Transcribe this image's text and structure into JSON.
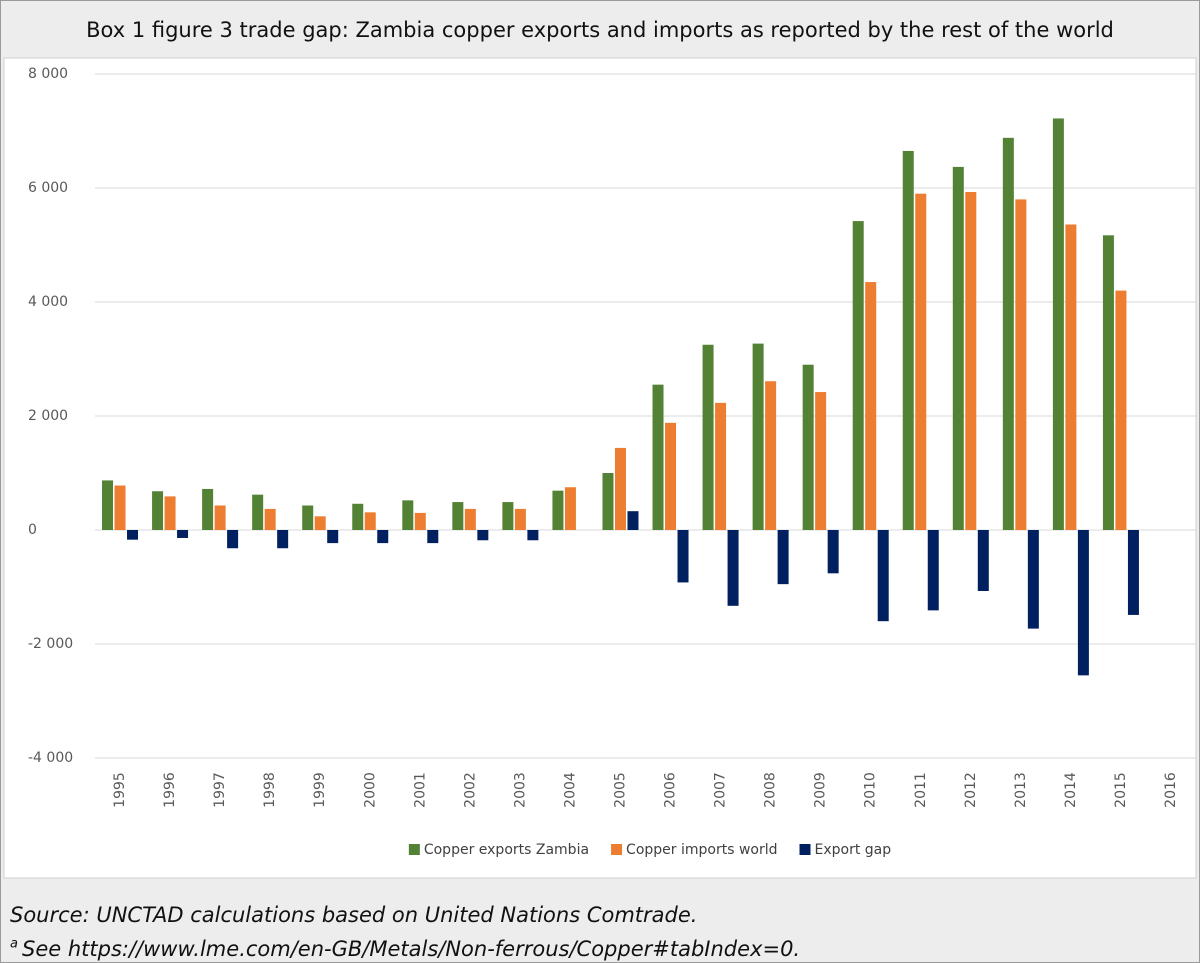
{
  "chart_data": {
    "type": "bar",
    "title": "Box 1 figure 3 trade gap: Zambia copper exports and imports as reported by the rest of the world",
    "categories": [
      "1995",
      "1996",
      "1997",
      "1998",
      "1999",
      "2000",
      "2001",
      "2002",
      "2003",
      "2004",
      "2005",
      "2006",
      "2007",
      "2008",
      "2009",
      "2010",
      "2011",
      "2012",
      "2013",
      "2014",
      "2015",
      "2016"
    ],
    "series": [
      {
        "name": "Copper exports Zambia",
        "color": "#548235",
        "values": [
          870,
          680,
          720,
          620,
          430,
          460,
          520,
          490,
          490,
          690,
          1000,
          2550,
          3250,
          3270,
          2900,
          5420,
          6650,
          6370,
          6880,
          7220,
          5170,
          null
        ]
      },
      {
        "name": "Copper imports world",
        "color": "#ed7d31",
        "values": [
          780,
          590,
          430,
          370,
          240,
          310,
          300,
          370,
          370,
          750,
          1440,
          1880,
          2230,
          2610,
          2420,
          4350,
          5900,
          5930,
          5800,
          5360,
          4200,
          null
        ]
      },
      {
        "name": "Export gap",
        "color": "#002060",
        "values": [
          -170,
          -140,
          -320,
          -320,
          -230,
          -230,
          -230,
          -180,
          -180,
          null,
          330,
          -920,
          -1330,
          -950,
          -760,
          -1600,
          -1410,
          -1070,
          -1730,
          -2550,
          -1490,
          null
        ]
      }
    ],
    "ylim": [
      -4000,
      8000
    ],
    "yticks": [
      {
        "value": -4000,
        "label": "-4 000"
      },
      {
        "value": -2000,
        "label": "-2 000"
      },
      0,
      {
        "value": 2000,
        "label": "2 000"
      },
      {
        "value": 4000,
        "label": "4 000"
      },
      {
        "value": 6000,
        "label": "6 000"
      },
      {
        "value": 8000,
        "label": "8 000"
      }
    ],
    "grid": true,
    "legend": "bottom",
    "source": "Source: UNCTAD calculations based on United Nations Comtrade.",
    "footnote": {
      "marker": "a",
      "text": "See https://www.lme.com/en-GB/Metals/Non-ferrous/Copper#tabIndex=0."
    }
  }
}
